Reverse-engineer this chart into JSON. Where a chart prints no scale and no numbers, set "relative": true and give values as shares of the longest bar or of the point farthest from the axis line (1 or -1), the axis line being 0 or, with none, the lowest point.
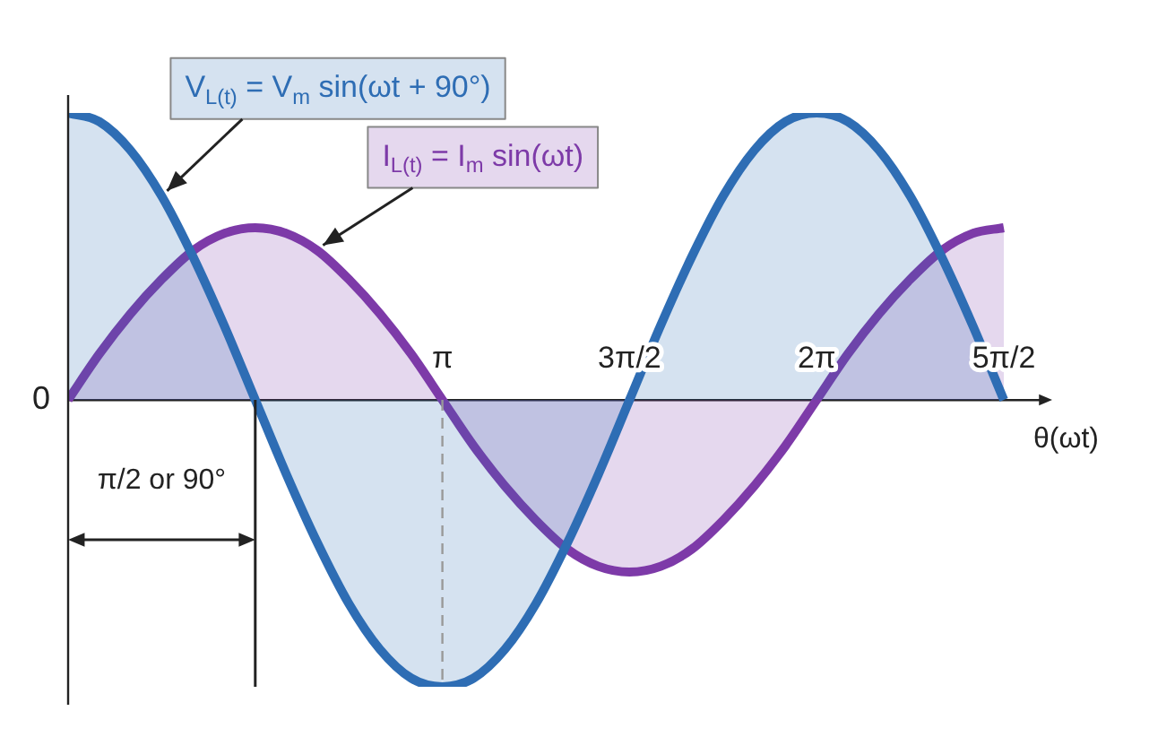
{
  "chart_data": {
    "type": "area",
    "relative": true,
    "marker": "none",
    "xlabel": "θ(ωt)",
    "x": [
      0,
      0.2618,
      0.5236,
      0.7854,
      1.0472,
      1.309,
      1.5708,
      1.8326,
      2.0944,
      2.3562,
      2.618,
      2.8798,
      3.1416,
      3.4034,
      3.6652,
      3.927,
      4.1888,
      4.4506,
      4.7124,
      4.9742,
      5.236,
      5.4978,
      5.7596,
      6.0214,
      6.2832,
      6.545,
      6.8068,
      7.0686,
      7.3304,
      7.5922,
      7.854
    ],
    "series": [
      {
        "name": null,
        "color": "#2e6db4",
        "values": [
          1,
          0.97,
          0.87,
          0.71,
          0.5,
          0.26,
          0,
          -0.26,
          -0.5,
          -0.71,
          -0.87,
          -0.97,
          -1,
          -0.97,
          -0.87,
          -0.71,
          -0.5,
          -0.26,
          0,
          0.26,
          0.5,
          0.71,
          0.87,
          0.97,
          1,
          0.97,
          0.87,
          0.71,
          0.5,
          0.26,
          0
        ]
      },
      {
        "name": null,
        "color": "#7d3aa8",
        "values": [
          0,
          0.16,
          0.3,
          0.42,
          0.52,
          0.58,
          0.6,
          0.58,
          0.52,
          0.42,
          0.3,
          0.16,
          0,
          -0.16,
          -0.3,
          -0.42,
          -0.52,
          -0.58,
          -0.6,
          -0.58,
          -0.52,
          -0.42,
          -0.3,
          -0.16,
          0,
          0.16,
          0.3,
          0.42,
          0.52,
          0.58,
          0.6
        ]
      }
    ],
    "xlim": [
      0,
      8.2
    ],
    "xticks": [
      {
        "value": 3.1416,
        "label": "π"
      },
      {
        "value": 4.7124,
        "label": "3π/2"
      },
      {
        "value": 6.2832,
        "label": "2π"
      },
      {
        "value": 7.854,
        "label": "5π/2"
      }
    ],
    "ref_lines": [
      {
        "axis": "x",
        "value": 3.1416,
        "line_style": "dashed",
        "color": "#999999"
      },
      {
        "axis": "x",
        "value": 1.5708,
        "line_style": "solid",
        "color": "#222222"
      }
    ],
    "annotations": [
      {
        "text": "V$_{L(t)}$ = V$_{m}$ sin(ωt + 90°)",
        "x": 0.7854,
        "y": 0.71
      },
      {
        "text": "I$_{L(t)}$ = I$_{m}$ sin(ωt)",
        "x": 2.0944,
        "y": 0.52
      },
      {
        "text": "π/2 or 90°",
        "x": 1.5708,
        "y": 0
      },
      {
        "text": "0",
        "x": 0,
        "y": 0
      }
    ]
  }
}
